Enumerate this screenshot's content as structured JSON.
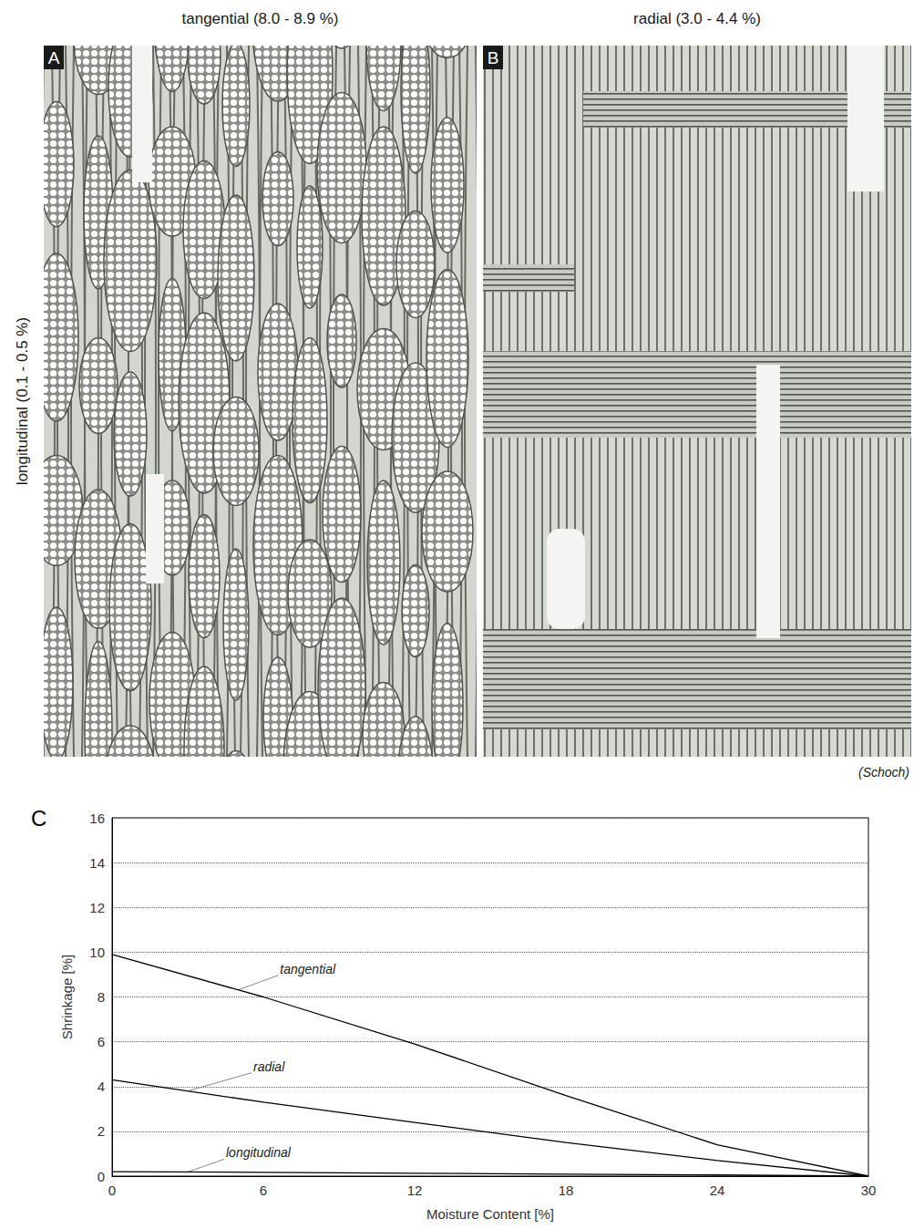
{
  "figure": {
    "panels": [
      {
        "letter": "A",
        "title": "tangential (8.0 - 8.9 %)"
      },
      {
        "letter": "B",
        "title": "radial (3.0 - 4.4 %)"
      }
    ],
    "side_label": "longitudinal (0.1 - 0.5 %)",
    "credit": "(Schoch)"
  },
  "chart_data": {
    "type": "line",
    "panel_letter": "C",
    "x_label": "Moisture Content [%]",
    "y_label": "Shrinkage [%]",
    "x": [
      0,
      6,
      12,
      18,
      24,
      30
    ],
    "series": [
      {
        "name": "tangential",
        "color": "#000000",
        "values": [
          9.9,
          8.0,
          5.9,
          3.6,
          1.4,
          0
        ]
      },
      {
        "name": "radial",
        "color": "#000000",
        "values": [
          4.3,
          3.3,
          2.4,
          1.5,
          0.7,
          0
        ]
      },
      {
        "name": "longitudinal",
        "color": "#000000",
        "values": [
          0.2,
          0.17,
          0.13,
          0.09,
          0.05,
          0
        ]
      }
    ],
    "xlim": [
      0,
      30
    ],
    "xticks": [
      0,
      6,
      12,
      18,
      24,
      30
    ],
    "ylim": [
      0,
      16
    ],
    "yticks": [
      0,
      2,
      4,
      6,
      8,
      10,
      12,
      14,
      16
    ],
    "grid": true
  }
}
